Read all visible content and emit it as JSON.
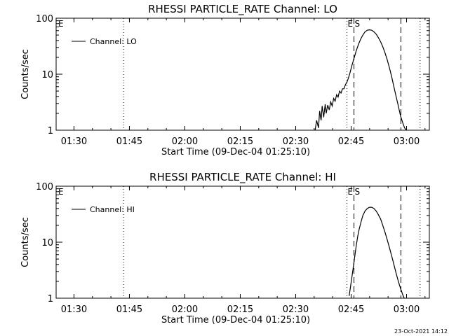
{
  "footer_timestamp": "23-Oct-2021 14:12",
  "chart_data": [
    {
      "type": "line",
      "title": "RHESSI PARTICLE_RATE Channel: LO",
      "xlabel": "Start Time (09-Dec-04 01:25:10)",
      "ylabel": "Counts/sec",
      "y_scale": "log",
      "x_unit": "minutes since 01:25:10",
      "xlim": [
        0,
        101
      ],
      "ylim": [
        1,
        100
      ],
      "x_ticks": [
        {
          "label": "01:30",
          "value": 4.83
        },
        {
          "label": "01:45",
          "value": 19.83
        },
        {
          "label": "02:00",
          "value": 34.83
        },
        {
          "label": "02:15",
          "value": 49.83
        },
        {
          "label": "02:30",
          "value": 64.83
        },
        {
          "label": "02:45",
          "value": 79.83
        },
        {
          "label": "03:00",
          "value": 94.83
        }
      ],
      "y_ticks": [
        {
          "label": "1",
          "value": 1
        },
        {
          "label": "10",
          "value": 10
        },
        {
          "label": "100",
          "value": 100
        }
      ],
      "legend": {
        "position": "top-left",
        "entries": [
          "Channel: LO"
        ]
      },
      "markers": {
        "start": "E",
        "end": "S"
      },
      "vlines": [
        {
          "x": 18.2,
          "style": "dotted"
        },
        {
          "x": 78.7,
          "style": "dotted"
        },
        {
          "x": 80.6,
          "style": "dashed"
        },
        {
          "x": 93.3,
          "style": "dashed"
        },
        {
          "x": 98.5,
          "style": "dotted"
        }
      ],
      "series": [
        {
          "name": "Channel: LO",
          "x": [
            70.1,
            70.5,
            71.0,
            71.3,
            71.7,
            72.0,
            72.4,
            72.8,
            73.1,
            73.5,
            73.9,
            74.3,
            74.7,
            75.1,
            75.5,
            75.9,
            76.3,
            76.7,
            77.1,
            77.5,
            77.9,
            78.3,
            78.7,
            79.1,
            79.5,
            80.0,
            80.6,
            81.2,
            81.8,
            82.4,
            83.0,
            83.6,
            84.2,
            84.8,
            85.4,
            86.0,
            86.6,
            87.2,
            87.8,
            88.4,
            89.0,
            89.6,
            90.2,
            90.8,
            91.4,
            92.0,
            92.6,
            93.2,
            93.8,
            94.3,
            94.8,
            95.1
          ],
          "values": [
            1.0,
            1.5,
            1.1,
            2.2,
            1.5,
            2.7,
            1.7,
            2.9,
            2.0,
            2.8,
            2.3,
            3.2,
            2.7,
            3.7,
            3.3,
            4.3,
            3.9,
            5.0,
            4.6,
            5.5,
            5.5,
            6.5,
            7.2,
            8.5,
            10.5,
            14.0,
            19.0,
            26.0,
            34.0,
            42.0,
            50.0,
            57.0,
            61.0,
            62.0,
            61.0,
            57.0,
            52.0,
            45.0,
            38.0,
            31.0,
            24.0,
            18.0,
            13.0,
            9.0,
            6.0,
            4.0,
            2.7,
            1.8,
            1.35,
            1.1,
            1.0,
            0.8
          ]
        }
      ]
    },
    {
      "type": "line",
      "title": "RHESSI PARTICLE_RATE Channel: HI",
      "xlabel": "Start Time (09-Dec-04 01:25:10)",
      "ylabel": "Counts/sec",
      "y_scale": "log",
      "x_unit": "minutes since 01:25:10",
      "xlim": [
        0,
        101
      ],
      "ylim": [
        1,
        100
      ],
      "x_ticks": [
        {
          "label": "01:30",
          "value": 4.83
        },
        {
          "label": "01:45",
          "value": 19.83
        },
        {
          "label": "02:00",
          "value": 34.83
        },
        {
          "label": "02:15",
          "value": 49.83
        },
        {
          "label": "02:30",
          "value": 64.83
        },
        {
          "label": "02:45",
          "value": 79.83
        },
        {
          "label": "03:00",
          "value": 94.83
        }
      ],
      "y_ticks": [
        {
          "label": "1",
          "value": 1
        },
        {
          "label": "10",
          "value": 10
        },
        {
          "label": "100",
          "value": 100
        }
      ],
      "legend": {
        "position": "top-left",
        "entries": [
          "Channel: HI"
        ]
      },
      "markers": {
        "start": "E",
        "end": "S"
      },
      "vlines": [
        {
          "x": 18.2,
          "style": "dotted"
        },
        {
          "x": 78.7,
          "style": "dotted"
        },
        {
          "x": 80.6,
          "style": "dashed"
        },
        {
          "x": 93.3,
          "style": "dashed"
        },
        {
          "x": 98.5,
          "style": "dotted"
        }
      ],
      "series": [
        {
          "name": "Channel: HI",
          "x": [
            79.3,
            79.6,
            80.0,
            80.4,
            80.8,
            81.2,
            81.6,
            82.0,
            82.5,
            83.0,
            83.6,
            84.2,
            84.8,
            85.4,
            86.0,
            86.6,
            87.2,
            87.8,
            88.4,
            89.0,
            89.6,
            90.2,
            90.8,
            91.4,
            92.0,
            92.6,
            93.2,
            93.8,
            94.2,
            94.6
          ],
          "values": [
            1.1,
            1.5,
            2.3,
            3.5,
            5.5,
            8.5,
            12.5,
            17.0,
            23.0,
            30.0,
            36.0,
            40.0,
            42.0,
            42.0,
            40.0,
            36.0,
            31.0,
            26.0,
            20.0,
            15.0,
            11.0,
            8.0,
            5.7,
            4.0,
            2.8,
            2.0,
            1.5,
            1.15,
            1.0,
            0.8
          ]
        }
      ]
    }
  ]
}
